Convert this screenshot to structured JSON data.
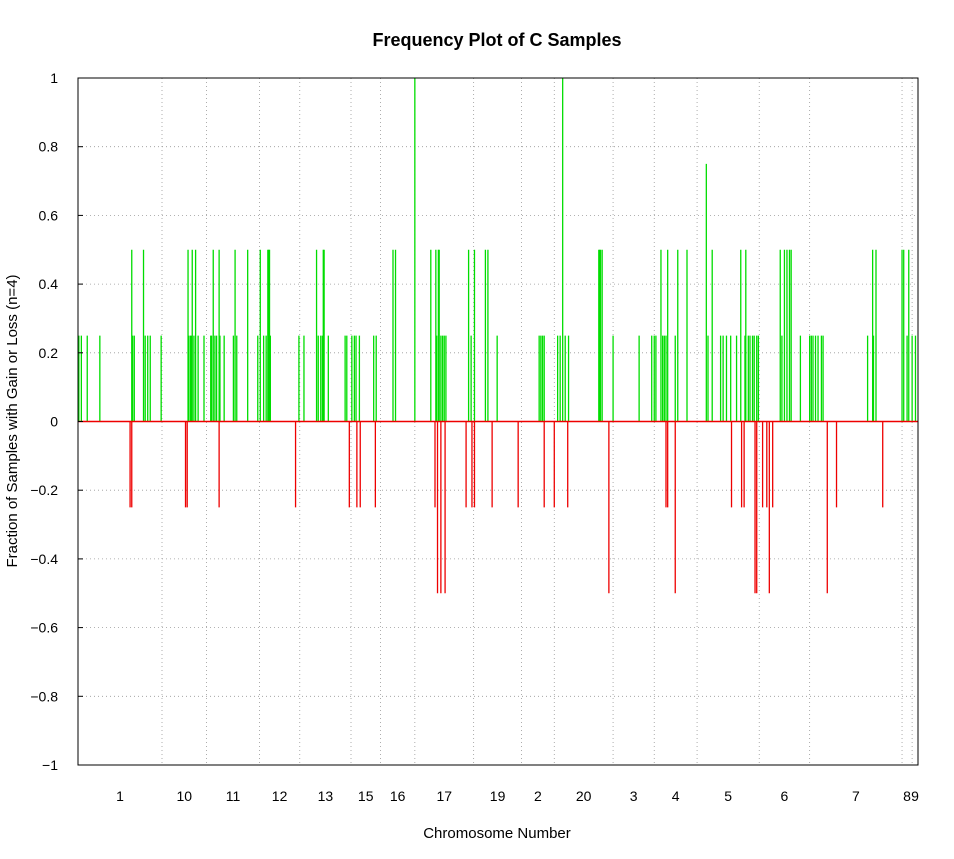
{
  "chart_data": {
    "type": "bar",
    "title": "Frequency Plot of C Samples",
    "xlabel": "Chromosome Number",
    "ylabel": "Fraction of Samples with Gain or Loss (n=4)",
    "ylim": [
      -1,
      1
    ],
    "yticks": [
      1,
      0.8,
      0.6,
      0.4,
      0.2,
      0,
      -0.2,
      -0.4,
      -0.6,
      -0.8,
      -1
    ],
    "ytick_labels": [
      "1",
      "0.8",
      "0.6",
      "0.4",
      "0.2",
      "0",
      "−0.2",
      "−0.4",
      "−0.6",
      "−0.8",
      "−1"
    ],
    "grid": true,
    "x_range": [
      0,
      1000
    ],
    "chromosomes": [
      {
        "label": "1",
        "start": 0,
        "end": 100
      },
      {
        "label": "10",
        "start": 100,
        "end": 153
      },
      {
        "label": "11",
        "start": 153,
        "end": 216
      },
      {
        "label": "12",
        "start": 216,
        "end": 264
      },
      {
        "label": "13",
        "start": 264,
        "end": 325
      },
      {
        "label": "15",
        "start": 325,
        "end": 360
      },
      {
        "label": "16",
        "start": 360,
        "end": 401
      },
      {
        "label": "17",
        "start": 401,
        "end": 471
      },
      {
        "label": "19",
        "start": 471,
        "end": 528
      },
      {
        "label": "2",
        "start": 528,
        "end": 567
      },
      {
        "label": "20",
        "start": 567,
        "end": 637
      },
      {
        "label": "3",
        "start": 637,
        "end": 686
      },
      {
        "label": "4",
        "start": 686,
        "end": 737
      },
      {
        "label": "5",
        "start": 737,
        "end": 811
      },
      {
        "label": "6",
        "start": 811,
        "end": 871
      },
      {
        "label": "7",
        "start": 871,
        "end": 981
      },
      {
        "label": "8",
        "start": 981,
        "end": 993
      },
      {
        "label": "9",
        "start": 993,
        "end": 1000
      }
    ],
    "series": [
      {
        "color": "#00dd00",
        "points": [
          [
            1,
            0.25
          ],
          [
            4,
            0.25
          ],
          [
            11,
            0.25
          ],
          [
            26,
            0.25
          ],
          [
            64,
            0.5
          ],
          [
            65,
            0.25
          ],
          [
            67,
            0.25
          ],
          [
            78,
            0.5
          ],
          [
            80,
            0.25
          ],
          [
            83,
            0.25
          ],
          [
            86,
            0.25
          ],
          [
            99,
            0.25
          ],
          [
            131,
            0.5
          ],
          [
            132,
            0.25
          ],
          [
            134,
            0.25
          ],
          [
            135,
            0.25
          ],
          [
            136,
            0.5
          ],
          [
            138,
            0.25
          ],
          [
            140,
            0.5
          ],
          [
            143,
            0.25
          ],
          [
            150,
            0.25
          ],
          [
            158,
            0.25
          ],
          [
            159,
            0.25
          ],
          [
            161,
            0.5
          ],
          [
            163,
            0.25
          ],
          [
            165,
            0.25
          ],
          [
            168,
            0.5
          ],
          [
            169,
            0.25
          ],
          [
            174,
            0.25
          ],
          [
            185,
            0.25
          ],
          [
            187,
            0.5
          ],
          [
            189,
            0.25
          ],
          [
            202,
            0.5
          ],
          [
            214,
            0.25
          ],
          [
            217,
            0.5
          ],
          [
            221,
            0.25
          ],
          [
            224,
            0.25
          ],
          [
            226,
            0.5
          ],
          [
            227,
            0.5
          ],
          [
            228,
            0.5
          ],
          [
            229,
            0.25
          ],
          [
            263,
            0.25
          ],
          [
            269,
            0.25
          ],
          [
            284,
            0.5
          ],
          [
            286,
            0.25
          ],
          [
            289,
            0.25
          ],
          [
            291,
            0.25
          ],
          [
            292,
            0.5
          ],
          [
            293,
            0.5
          ],
          [
            298,
            0.25
          ],
          [
            318,
            0.25
          ],
          [
            320,
            0.25
          ],
          [
            326,
            0.25
          ],
          [
            329,
            0.25
          ],
          [
            331,
            0.25
          ],
          [
            335,
            0.25
          ],
          [
            352,
            0.25
          ],
          [
            355,
            0.25
          ],
          [
            375,
            0.5
          ],
          [
            378,
            0.5
          ],
          [
            401,
            1.0
          ],
          [
            420,
            0.5
          ],
          [
            426,
            0.5
          ],
          [
            427,
            0.25
          ],
          [
            429,
            0.5
          ],
          [
            430,
            0.5
          ],
          [
            432,
            0.25
          ],
          [
            434,
            0.25
          ],
          [
            436,
            0.25
          ],
          [
            438,
            0.25
          ],
          [
            465,
            0.5
          ],
          [
            468,
            0.25
          ],
          [
            472,
            0.5
          ],
          [
            485,
            0.5
          ],
          [
            488,
            0.5
          ],
          [
            499,
            0.25
          ],
          [
            549,
            0.25
          ],
          [
            551,
            0.25
          ],
          [
            553,
            0.25
          ],
          [
            555,
            0.25
          ],
          [
            571,
            0.25
          ],
          [
            574,
            0.25
          ],
          [
            577,
            1.0
          ],
          [
            580,
            0.25
          ],
          [
            584,
            0.25
          ],
          [
            620,
            0.5
          ],
          [
            621,
            0.5
          ],
          [
            622,
            0.5
          ],
          [
            624,
            0.5
          ],
          [
            637,
            0.25
          ],
          [
            668,
            0.25
          ],
          [
            683,
            0.25
          ],
          [
            686,
            0.25
          ],
          [
            688,
            0.25
          ],
          [
            694,
            0.5
          ],
          [
            696,
            0.25
          ],
          [
            698,
            0.25
          ],
          [
            700,
            0.25
          ],
          [
            702,
            0.5
          ],
          [
            711,
            0.25
          ],
          [
            714,
            0.5
          ],
          [
            725,
            0.5
          ],
          [
            748,
            0.75
          ],
          [
            750,
            0.25
          ],
          [
            755,
            0.5
          ],
          [
            765,
            0.25
          ],
          [
            768,
            0.25
          ],
          [
            772,
            0.25
          ],
          [
            777,
            0.25
          ],
          [
            784,
            0.25
          ],
          [
            789,
            0.5
          ],
          [
            794,
            0.25
          ],
          [
            795,
            0.5
          ],
          [
            798,
            0.25
          ],
          [
            800,
            0.25
          ],
          [
            803,
            0.25
          ],
          [
            805,
            0.25
          ],
          [
            808,
            0.25
          ],
          [
            810,
            0.25
          ],
          [
            836,
            0.5
          ],
          [
            838,
            0.25
          ],
          [
            841,
            0.5
          ],
          [
            844,
            0.5
          ],
          [
            847,
            0.5
          ],
          [
            849,
            0.5
          ],
          [
            860,
            0.25
          ],
          [
            871,
            0.25
          ],
          [
            873,
            0.25
          ],
          [
            875,
            0.25
          ],
          [
            878,
            0.25
          ],
          [
            881,
            0.25
          ],
          [
            885,
            0.25
          ],
          [
            887,
            0.25
          ],
          [
            940,
            0.25
          ],
          [
            946,
            0.5
          ],
          [
            947,
            0.25
          ],
          [
            950,
            0.5
          ],
          [
            981,
            0.5
          ],
          [
            983,
            0.5
          ],
          [
            987,
            0.25
          ],
          [
            989,
            0.5
          ],
          [
            993,
            0.25
          ],
          [
            997,
            0.25
          ]
        ]
      },
      {
        "color": "#ee0000",
        "points": [
          [
            62,
            -0.25
          ],
          [
            64,
            -0.25
          ],
          [
            128,
            -0.25
          ],
          [
            130,
            -0.25
          ],
          [
            168,
            -0.25
          ],
          [
            259,
            -0.25
          ],
          [
            323,
            -0.25
          ],
          [
            332,
            -0.25
          ],
          [
            336,
            -0.25
          ],
          [
            354,
            -0.25
          ],
          [
            425,
            -0.25
          ],
          [
            428,
            -0.5
          ],
          [
            432,
            -0.5
          ],
          [
            437,
            -0.5
          ],
          [
            462,
            -0.25
          ],
          [
            469,
            -0.25
          ],
          [
            472,
            -0.25
          ],
          [
            493,
            -0.25
          ],
          [
            524,
            -0.25
          ],
          [
            555,
            -0.25
          ],
          [
            567,
            -0.25
          ],
          [
            583,
            -0.25
          ],
          [
            632,
            -0.5
          ],
          [
            700,
            -0.25
          ],
          [
            702,
            -0.25
          ],
          [
            711,
            -0.5
          ],
          [
            778,
            -0.25
          ],
          [
            790,
            -0.25
          ],
          [
            793,
            -0.25
          ],
          [
            806,
            -0.5
          ],
          [
            808,
            -0.5
          ],
          [
            815,
            -0.25
          ],
          [
            820,
            -0.25
          ],
          [
            823,
            -0.5
          ],
          [
            827,
            -0.25
          ],
          [
            892,
            -0.5
          ],
          [
            903,
            -0.25
          ],
          [
            958,
            -0.25
          ]
        ]
      }
    ]
  }
}
